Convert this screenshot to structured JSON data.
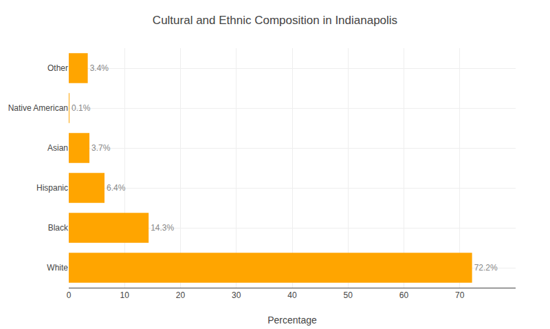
{
  "chart_data": {
    "type": "bar",
    "orientation": "horizontal",
    "title": "Cultural and Ethnic Composition in Indianapolis",
    "xlabel": "Percentage",
    "categories": [
      "White",
      "Black",
      "Hispanic",
      "Asian",
      "Native American",
      "Other"
    ],
    "values": [
      72.2,
      14.3,
      6.4,
      3.7,
      0.1,
      3.4
    ],
    "value_labels": [
      "72.2%",
      "14.3%",
      "6.4%",
      "3.7%",
      "0.1%",
      "3.4%"
    ],
    "data_labels": true,
    "color": "#FFA500",
    "xlim": [
      0,
      80
    ],
    "xticks": [
      0,
      10,
      20,
      30,
      40,
      50,
      60,
      70
    ],
    "grid": true
  }
}
